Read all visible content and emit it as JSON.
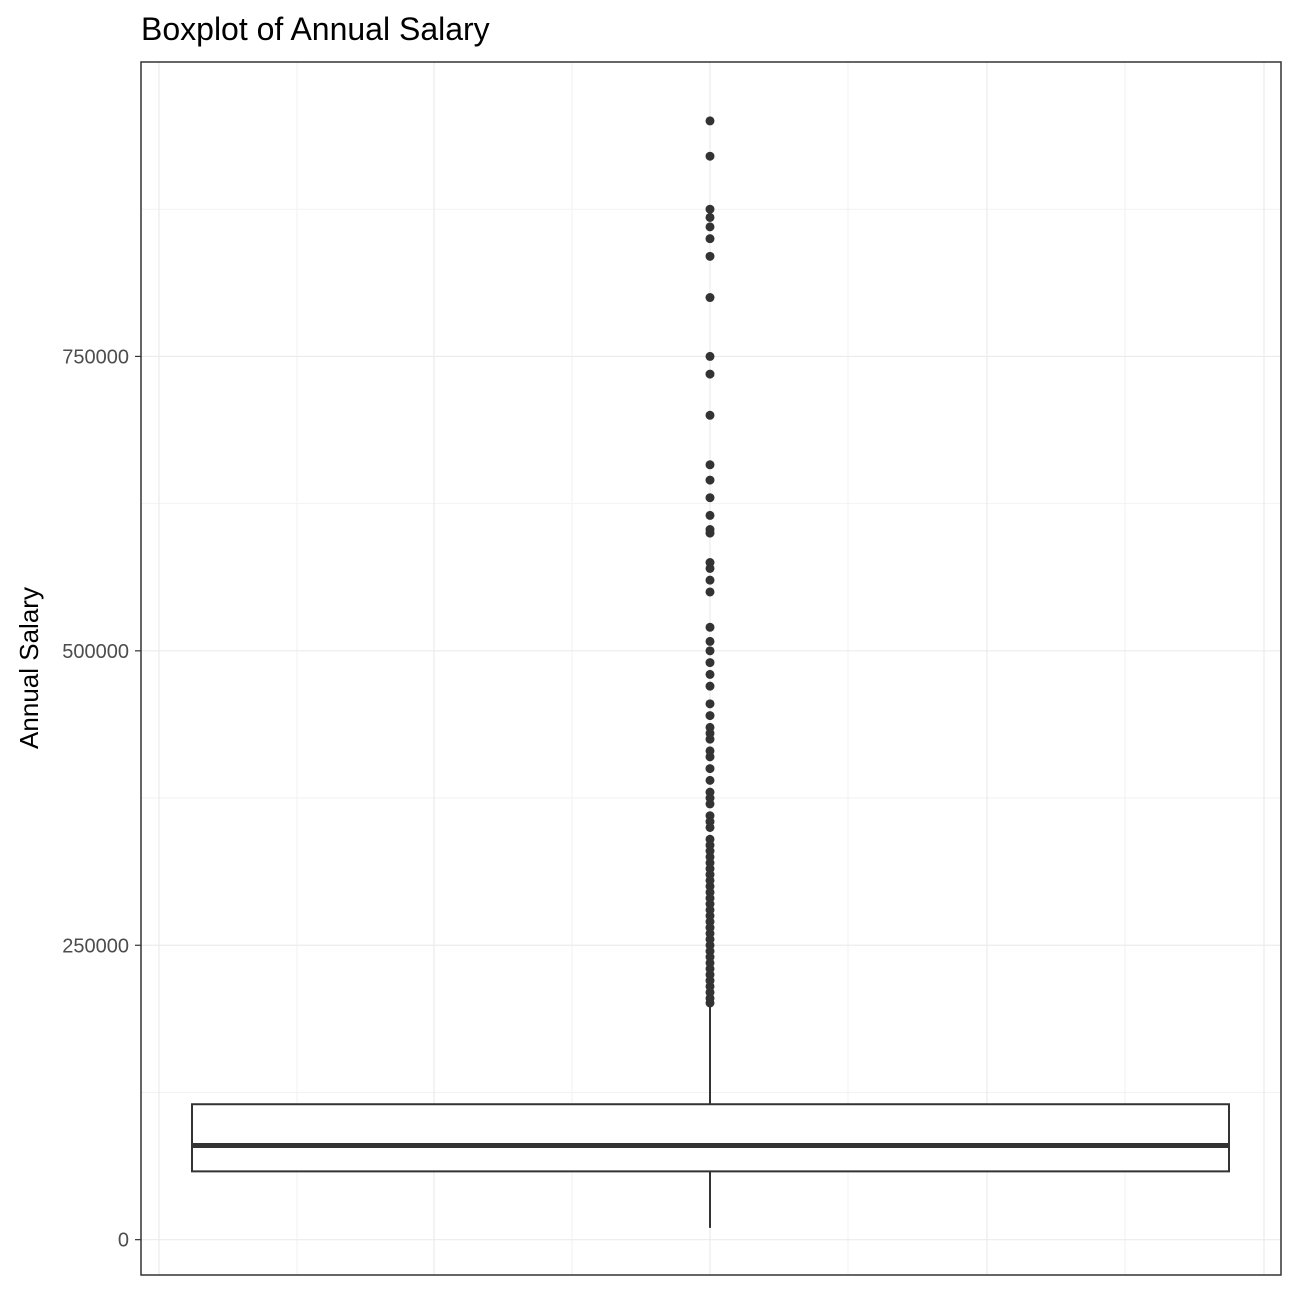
{
  "chart_data": {
    "type": "boxplot",
    "title": "Boxplot of Annual Salary",
    "xlabel": "",
    "ylabel": "Annual Salary",
    "yticks": [
      0,
      250000,
      500000,
      750000
    ],
    "ytick_labels": [
      "0",
      "250000",
      "500000",
      "750000"
    ],
    "ylim": [
      -30000,
      1000000
    ],
    "grid": true,
    "box": {
      "whisker_low": 10000,
      "q1": 58000,
      "median": 80000,
      "q3": 115000,
      "whisker_high": 200000
    },
    "outliers": [
      950000,
      920000,
      875000,
      868000,
      860000,
      850000,
      835000,
      800000,
      750000,
      735000,
      700000,
      658000,
      645000,
      630000,
      615000,
      603000,
      600000,
      575000,
      570000,
      560000,
      550000,
      520000,
      508000,
      500000,
      490000,
      480000,
      470000,
      455000,
      445000,
      435000,
      430000,
      425000,
      415000,
      410000,
      400000,
      390000,
      380000,
      375000,
      370000,
      360000,
      355000,
      350000,
      340000,
      335000,
      330000,
      325000,
      320000,
      315000,
      310000,
      305000,
      300000,
      295000,
      290000,
      285000,
      280000,
      275000,
      270000,
      265000,
      260000,
      255000,
      250000,
      245000,
      240000,
      235000,
      230000,
      225000,
      220000,
      215000,
      210000,
      205000,
      201000
    ],
    "colors": {
      "box_line": "#333333",
      "outlier": "#333333",
      "grid_major": "#ebebeb",
      "grid_minor": "#f2f2f2",
      "panel_border": "#333333"
    }
  }
}
